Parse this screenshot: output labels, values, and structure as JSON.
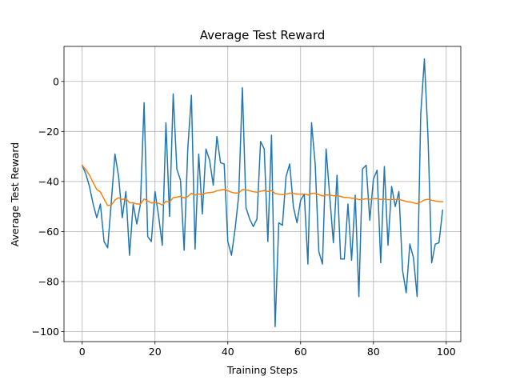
{
  "chart_data": {
    "type": "line",
    "title": "Average Test Reward",
    "xlabel": "Training Steps",
    "ylabel": "Average Test Reward",
    "xlim": [
      -5,
      104
    ],
    "ylim": [
      -104,
      14
    ],
    "x_ticks": [
      0,
      20,
      40,
      60,
      80,
      100
    ],
    "y_ticks": [
      0,
      -20,
      -40,
      -60,
      -80,
      -100
    ],
    "x_tick_labels": [
      "0",
      "20",
      "40",
      "60",
      "80",
      "100"
    ],
    "y_tick_labels": [
      "0",
      "−20",
      "−40",
      "−60",
      "−80",
      "−100"
    ],
    "grid": true,
    "x": [
      0,
      1,
      2,
      3,
      4,
      5,
      6,
      7,
      8,
      9,
      10,
      11,
      12,
      13,
      14,
      15,
      16,
      17,
      18,
      19,
      20,
      21,
      22,
      23,
      24,
      25,
      26,
      27,
      28,
      29,
      30,
      31,
      32,
      33,
      34,
      35,
      36,
      37,
      38,
      39,
      40,
      41,
      42,
      43,
      44,
      45,
      46,
      47,
      48,
      49,
      50,
      51,
      52,
      53,
      54,
      55,
      56,
      57,
      58,
      59,
      60,
      61,
      62,
      63,
      64,
      65,
      66,
      67,
      68,
      69,
      70,
      71,
      72,
      73,
      74,
      75,
      76,
      77,
      78,
      79,
      80,
      81,
      82,
      83,
      84,
      85,
      86,
      87,
      88,
      89,
      90,
      91,
      92,
      93,
      94,
      95,
      96,
      97,
      98,
      99
    ],
    "series": [
      {
        "color": "#1f77b4",
        "values": [
          -33.5,
          -37,
          -42,
          -49,
          -54.5,
          -49,
          -64,
          -66.5,
          -48,
          -29,
          -38,
          -54.5,
          -44,
          -69.5,
          -49,
          -57,
          -49,
          -8.5,
          -62,
          -64,
          -44,
          -54,
          -65.5,
          -16.5,
          -54,
          -5,
          -35,
          -39.5,
          -67.5,
          -27,
          -5.5,
          -67,
          -29,
          -53,
          -27,
          -31.5,
          -41.5,
          -22,
          -32.5,
          -33,
          -64,
          -69.5,
          -59,
          -45.5,
          -2.5,
          -50.5,
          -55,
          -58,
          -55,
          -24,
          -27,
          -64,
          -21.5,
          -98,
          -56.5,
          -57.5,
          -38,
          -33,
          -50,
          -56.5,
          -47.5,
          -45,
          -73,
          -16.5,
          -33,
          -68,
          -73,
          -27,
          -46,
          -64.5,
          -37.5,
          -71,
          -71,
          -49,
          -71.5,
          -45.5,
          -86,
          -35,
          -33.5,
          -55.5,
          -39,
          -35.5,
          -72.5,
          -34,
          -65.5,
          -42,
          -50,
          -44,
          -75.5,
          -84.5,
          -65,
          -70.5,
          -86,
          -13,
          9,
          -22.5,
          -72.5,
          -65,
          -64.5,
          -51.5
        ]
      },
      {
        "color": "#ff7f0e",
        "values": [
          -33.5,
          -35.3,
          -37.5,
          -40.4,
          -43.2,
          -44.2,
          -47,
          -49.6,
          -49.4,
          -47.4,
          -46.5,
          -47.2,
          -46.8,
          -48.5,
          -48.5,
          -49,
          -49,
          -47,
          -47.8,
          -48.6,
          -48.4,
          -48.7,
          -49.4,
          -47.9,
          -48.2,
          -46.5,
          -46.2,
          -46,
          -46.6,
          -46,
          -44.7,
          -45.4,
          -45,
          -45.2,
          -44.6,
          -44.4,
          -44.3,
          -43.7,
          -43.4,
          -43.2,
          -43.7,
          -44.3,
          -44.6,
          -44.6,
          -43.2,
          -43.4,
          -43.7,
          -44.1,
          -44.3,
          -43.9,
          -43.6,
          -44,
          -43.6,
          -44.8,
          -45.1,
          -45.3,
          -45,
          -44.7,
          -44.8,
          -45,
          -45.1,
          -45,
          -45.4,
          -44.8,
          -44.7,
          -45.2,
          -45.8,
          -45.4,
          -45.4,
          -45.7,
          -45.6,
          -46,
          -46.4,
          -46.4,
          -46.7,
          -46.7,
          -47.3,
          -47.1,
          -46.9,
          -47.1,
          -46.9,
          -46.8,
          -47.2,
          -47,
          -47.3,
          -47.2,
          -47.2,
          -47.2,
          -47.5,
          -48,
          -48.2,
          -48.5,
          -48.9,
          -48.2,
          -47.4,
          -47.1,
          -47.5,
          -47.8,
          -48,
          -48.1
        ]
      }
    ]
  }
}
